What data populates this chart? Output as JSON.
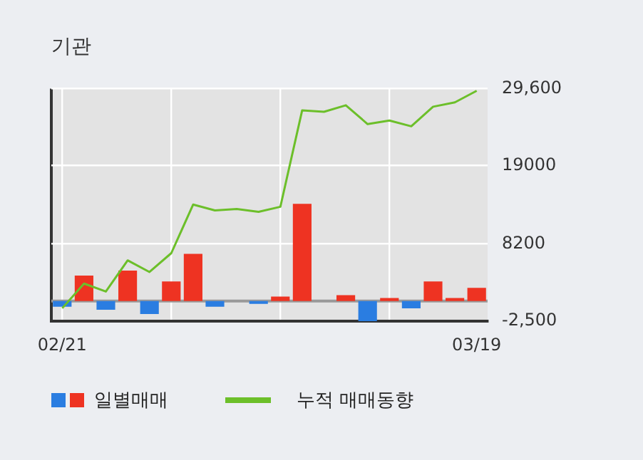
{
  "chart_data": {
    "type": "bar",
    "title": "기관",
    "categories": [
      "02/21",
      null,
      null,
      null,
      null,
      null,
      null,
      null,
      null,
      null,
      null,
      null,
      null,
      null,
      null,
      null,
      null,
      null,
      null,
      "03/19"
    ],
    "series": [
      {
        "name": "일별매매",
        "colors": [
          "#2a7de1",
          "#ee3322",
          "#2a7de1",
          "#ee3322",
          "#2a7de1",
          "#ee3322",
          "#ee3322",
          "#2a7de1",
          "#ee3322",
          "#2a7de1",
          "#ee3322",
          "#ee3322",
          "#ee3322",
          "#ee3322",
          "#2a7de1",
          "#ee3322",
          "#2a7de1",
          "#ee3322",
          "#ee3322",
          "#ee3322"
        ],
        "base": [
          300,
          300,
          300,
          300,
          300,
          300,
          300,
          300,
          null,
          300,
          300,
          300,
          null,
          300,
          300,
          300,
          300,
          300,
          300,
          300
        ],
        "values": [
          -800,
          3500,
          -1200,
          4200,
          -1800,
          2700,
          6500,
          -800,
          null,
          -400,
          600,
          13400,
          null,
          800,
          -2800,
          400,
          -1000,
          2700,
          400,
          1800
        ]
      },
      {
        "name": "누적 매매동향",
        "type": "line",
        "color": "#6cbf2a",
        "values": [
          -700,
          2700,
          1600,
          5900,
          4300,
          6900,
          13600,
          12800,
          13000,
          12600,
          13300,
          26600,
          26400,
          27300,
          24700,
          25200,
          24400,
          27100,
          27700,
          29300
        ]
      }
    ],
    "ref_lines": [
      {
        "axis": "y",
        "value": 300,
        "color": "#999999"
      }
    ],
    "ylim": [
      -2500,
      29600
    ],
    "yticks": [
      {
        "value": 29600,
        "label": "29,600"
      },
      19000,
      8200,
      {
        "value": -2500,
        "label": "-2,500"
      }
    ],
    "grid": true,
    "legend": "bottom",
    "marker": "none",
    "line_style": "solid"
  }
}
